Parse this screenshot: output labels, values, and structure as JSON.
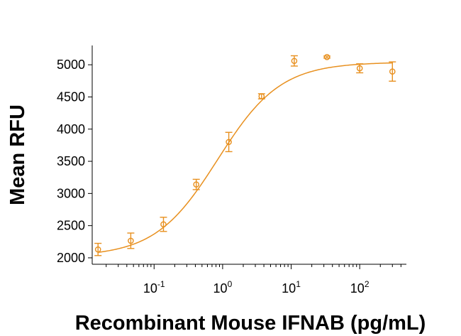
{
  "chart_data": {
    "type": "scatter",
    "title": "",
    "xlabel": "Recombinant Mouse IFNAB (pg/mL)",
    "ylabel": "Mean RFU",
    "xscale": "log",
    "xlim": [
      0.0125,
      480
    ],
    "ylim": [
      1900,
      5300
    ],
    "yticks": [
      2000,
      2500,
      3000,
      3500,
      4000,
      4500,
      5000
    ],
    "ytick_labels": [
      "2000",
      "2500",
      "3000",
      "3500",
      "4000",
      "4500",
      "5000"
    ],
    "xticks": [
      {
        "value": 0.1,
        "base": "10",
        "exp": "-1"
      },
      {
        "value": 1,
        "base": "10",
        "exp": "0"
      },
      {
        "value": 10,
        "base": "10",
        "exp": "1"
      },
      {
        "value": 100,
        "base": "10",
        "exp": "2"
      }
    ],
    "series": [
      {
        "name": "Mean RFU",
        "color": "#e8901f",
        "marker": "open-circle",
        "points": [
          {
            "x": 0.0152,
            "y": 2130,
            "err": 95
          },
          {
            "x": 0.0457,
            "y": 2265,
            "err": 120
          },
          {
            "x": 0.137,
            "y": 2520,
            "err": 110
          },
          {
            "x": 0.412,
            "y": 3140,
            "err": 80
          },
          {
            "x": 1.23,
            "y": 3800,
            "err": 150
          },
          {
            "x": 3.7,
            "y": 4510,
            "err": 40
          },
          {
            "x": 11.1,
            "y": 5060,
            "err": 80
          },
          {
            "x": 33.3,
            "y": 5120,
            "err": 15
          },
          {
            "x": 100,
            "y": 4945,
            "err": 70
          },
          {
            "x": 300,
            "y": 4895,
            "err": 150
          }
        ]
      }
    ],
    "fit": {
      "model": "4PL",
      "bottom": 2020,
      "top": 5040,
      "ec50": 0.85,
      "hill": 0.95,
      "range": [
        0.0152,
        300
      ]
    }
  }
}
